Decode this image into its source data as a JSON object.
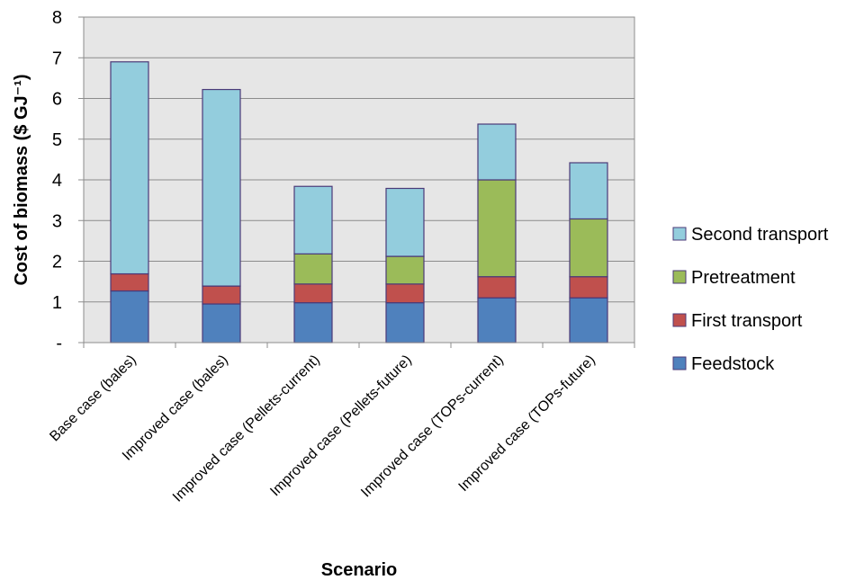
{
  "chart_data": {
    "type": "bar",
    "stacked": true,
    "categories": [
      "Base case (bales)",
      "Improved case (bales)",
      "Improved case (Pellets-current)",
      "Improved case (Pellets-future)",
      "Improved case (TOPs-current)",
      "Improved case (TOPs-future)"
    ],
    "series": [
      {
        "name": "Feedstock",
        "color": "#4F81BD",
        "values": [
          1.27,
          0.95,
          0.98,
          0.98,
          1.1,
          1.1
        ]
      },
      {
        "name": "First transport",
        "color": "#C0504D",
        "values": [
          0.42,
          0.44,
          0.46,
          0.46,
          0.52,
          0.52
        ]
      },
      {
        "name": "Pretreatment",
        "color": "#9BBB59",
        "values": [
          0,
          0,
          0.74,
          0.68,
          2.38,
          1.42
        ]
      },
      {
        "name": "Second transport",
        "color": "#93CDDD",
        "values": [
          5.21,
          4.83,
          1.66,
          1.67,
          1.37,
          1.38
        ]
      }
    ],
    "xlabel": "Scenario",
    "ylabel": "Cost of biomass ($ GJ⁻¹)",
    "ylim": [
      0,
      8
    ],
    "yticks": [
      "-",
      "1",
      "2",
      "3",
      "4",
      "5",
      "6",
      "7",
      "8"
    ],
    "grid": true,
    "legend_position": "right",
    "legend_order": [
      "Second transport",
      "Pretreatment",
      "First transport",
      "Feedstock"
    ],
    "plot_background": "#E6E6E6",
    "bar_outline": "#4B3A78"
  }
}
